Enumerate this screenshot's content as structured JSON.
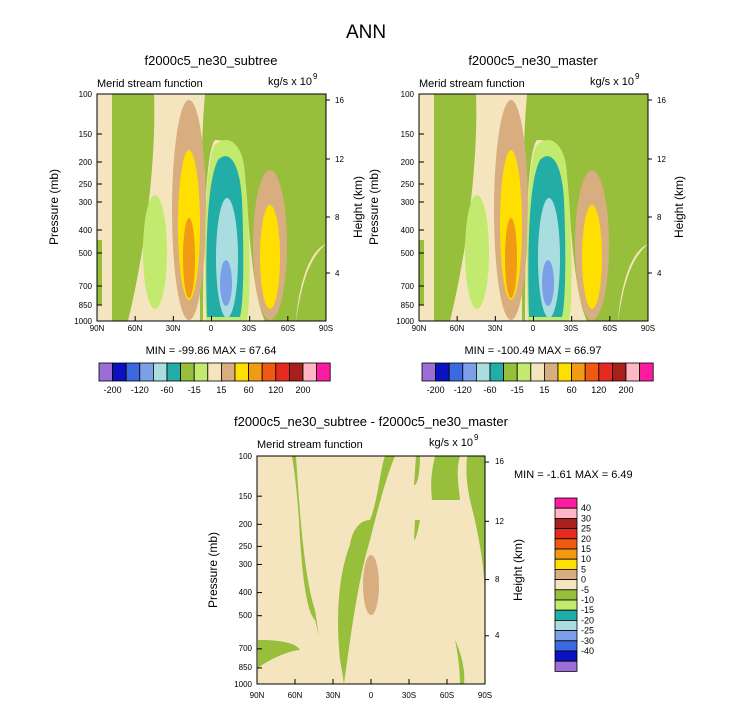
{
  "title": "ANN",
  "colors": {
    "green_dark": "#97bf3c",
    "green_light": "#c2ea6f",
    "teal": "#22ada7",
    "cyan_light": "#aadde0",
    "blue_light": "#7ba0e8",
    "tan": "#d8ad80",
    "cream": "#f5e5bf",
    "yellow": "#ffdf00",
    "orange": "#f09a16"
  },
  "chart_data": [
    {
      "type": "contour",
      "panel": "top-left",
      "title": "f2000c5_ne30_subtree",
      "left_label": "Merid stream function",
      "units_label": "kg/s x 10",
      "units_exp": "9",
      "ylabel": "Pressure (mb)",
      "right_ylabel": "Height (km)",
      "x_ticks": [
        "90N",
        "60N",
        "30N",
        "0",
        "30S",
        "60S",
        "90S"
      ],
      "y_ticks": [
        "100",
        "150",
        "200",
        "250",
        "300",
        "400",
        "500",
        "700",
        "850",
        "1000"
      ],
      "right_ticks": [
        "16",
        "12",
        "8",
        "4"
      ],
      "stats": "MIN = -99.86  MAX =  67.64",
      "min": -99.86,
      "max": 67.64
    },
    {
      "type": "contour",
      "panel": "top-right",
      "title": "f2000c5_ne30_master",
      "left_label": "Merid stream function",
      "units_label": "kg/s x 10",
      "units_exp": "9",
      "ylabel": "Pressure (mb)",
      "right_ylabel": "Height (km)",
      "x_ticks": [
        "90N",
        "60N",
        "30N",
        "0",
        "30S",
        "60S",
        "90S"
      ],
      "y_ticks": [
        "100",
        "150",
        "200",
        "250",
        "300",
        "400",
        "500",
        "700",
        "850",
        "1000"
      ],
      "right_ticks": [
        "16",
        "12",
        "8",
        "4"
      ],
      "stats": "MIN = -100.49  MAX =  66.97",
      "min": -100.49,
      "max": 66.97
    },
    {
      "type": "contour",
      "panel": "bottom",
      "title": "f2000c5_ne30_subtree - f2000c5_ne30_master",
      "left_label": "Merid stream function",
      "units_label": "kg/s x 10",
      "units_exp": "9",
      "ylabel": "Pressure (mb)",
      "right_ylabel": "Height (km)",
      "x_ticks": [
        "90N",
        "60N",
        "30N",
        "0",
        "30S",
        "60S",
        "90S"
      ],
      "y_ticks": [
        "100",
        "150",
        "200",
        "250",
        "300",
        "400",
        "500",
        "700",
        "850",
        "1000"
      ],
      "right_ticks": [
        "16",
        "12",
        "8",
        "4"
      ],
      "stats": "MIN =  -1.61  MAX =   6.49",
      "min": -1.61,
      "max": 6.49
    }
  ],
  "colorbar_main": {
    "labels": [
      "-200",
      "-120",
      "-60",
      "-15",
      "15",
      "60",
      "120",
      "200"
    ],
    "colors": [
      "#9b6ed6",
      "#0b11c0",
      "#3b6ae0",
      "#7ba0e8",
      "#aadde0",
      "#22ada7",
      "#97bf3c",
      "#c2ea6f",
      "#f5e5bf",
      "#d8ad80",
      "#ffdf00",
      "#f09a16",
      "#f05a10",
      "#e52a1f",
      "#a8201c",
      "#ffb6c5",
      "#ff1aa2"
    ]
  },
  "colorbar_diff": {
    "labels": [
      "40",
      "30",
      "25",
      "20",
      "15",
      "10",
      "5",
      "0",
      "-5",
      "-10",
      "-15",
      "-20",
      "-25",
      "-30",
      "-40"
    ],
    "colors": [
      "#ff1aa2",
      "#ffb6c5",
      "#a8201c",
      "#e52a1f",
      "#f05a10",
      "#f09a16",
      "#ffdf00",
      "#d8ad80",
      "#f5e5bf",
      "#97bf3c",
      "#c2ea6f",
      "#22ada7",
      "#aadde0",
      "#7ba0e8",
      "#3b6ae0",
      "#0b11c0",
      "#9b6ed6"
    ]
  }
}
